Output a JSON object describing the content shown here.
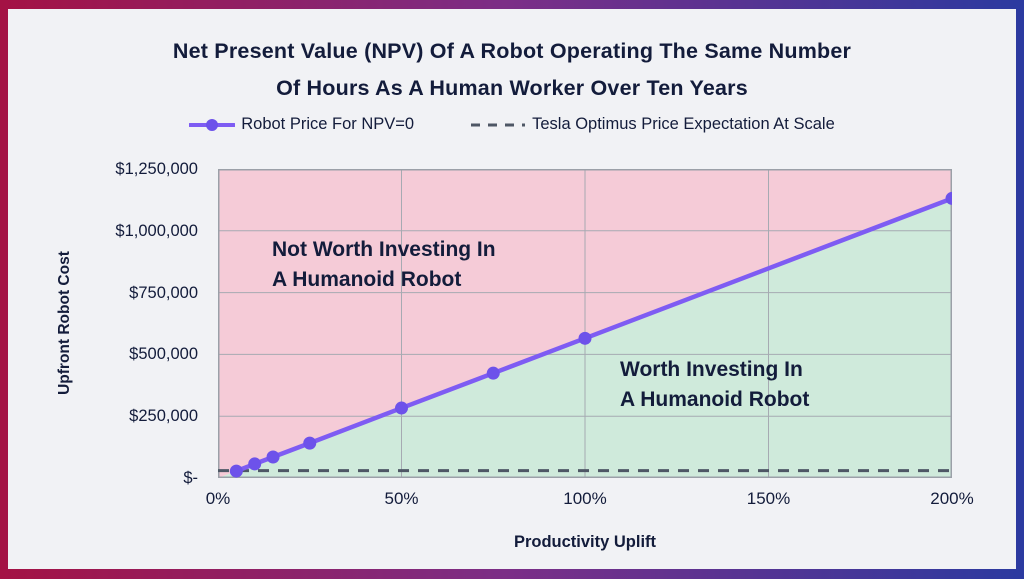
{
  "title": {
    "line1": "Net Present Value (NPV) Of A Robot Operating The Same Number",
    "line2": "Of Hours As A Human Worker Over Ten Years"
  },
  "legend": [
    {
      "label": "Robot Price For NPV=0",
      "marker": "line-with-dot"
    },
    {
      "label": "Tesla Optimus Price Expectation At Scale",
      "marker": "dashed-line"
    }
  ],
  "chart_data": {
    "type": "line",
    "title": "Net Present Value (NPV) Of A Robot Operating The Same Number Of Hours As A Human Worker Over Ten Years",
    "xlabel": "Productivity Uplift",
    "ylabel": "Upfront Robot Cost",
    "x_max": 200,
    "y_max": 1250000,
    "grid": true,
    "x_ticks": [
      {
        "value": 0,
        "label": "0%"
      },
      {
        "value": 50,
        "label": "50%"
      },
      {
        "value": 100,
        "label": "100%"
      },
      {
        "value": 150,
        "label": "150%"
      },
      {
        "value": 200,
        "label": "200%"
      }
    ],
    "y_ticks": [
      {
        "value": 0,
        "label": "$-"
      },
      {
        "value": 250000,
        "label": "$250,000"
      },
      {
        "value": 500000,
        "label": "$500,000"
      },
      {
        "value": 750000,
        "label": "$750,000"
      },
      {
        "value": 1000000,
        "label": "$1,000,000"
      },
      {
        "value": 1250000,
        "label": "$1,250,000"
      }
    ],
    "series": [
      {
        "name": "Robot Price For NPV=0",
        "points": [
          [
            5,
            28000
          ],
          [
            10,
            57000
          ],
          [
            15,
            85000
          ],
          [
            25,
            141000
          ],
          [
            50,
            283000
          ],
          [
            75,
            424000
          ],
          [
            100,
            565000
          ],
          [
            200,
            1131000
          ]
        ]
      }
    ],
    "reference_line": {
      "name": "Tesla Optimus Price Expectation At Scale",
      "value": 30000,
      "style": "dashed"
    },
    "annotations": [
      {
        "line1": "Not Worth Investing In",
        "line2": "A Humanoid Robot",
        "region": "above-line"
      },
      {
        "line1": "Worth Investing In",
        "line2": "A Humanoid Robot",
        "region": "below-line"
      }
    ],
    "colors": {
      "line": "#7e5cf3",
      "marker": "#6d52ea",
      "above_fill": "#f5cbd7",
      "below_fill": "#cfeadb",
      "reference_dash": "#4e5765",
      "grid": "#a6aab2",
      "plot_border": "#9ba0a8",
      "text": "#131c3b",
      "background": "#f1f2f5",
      "frame_gradient_left": "#a41244",
      "frame_gradient_mid": "#7b2e87",
      "frame_gradient_right": "#2b3aa0"
    }
  }
}
